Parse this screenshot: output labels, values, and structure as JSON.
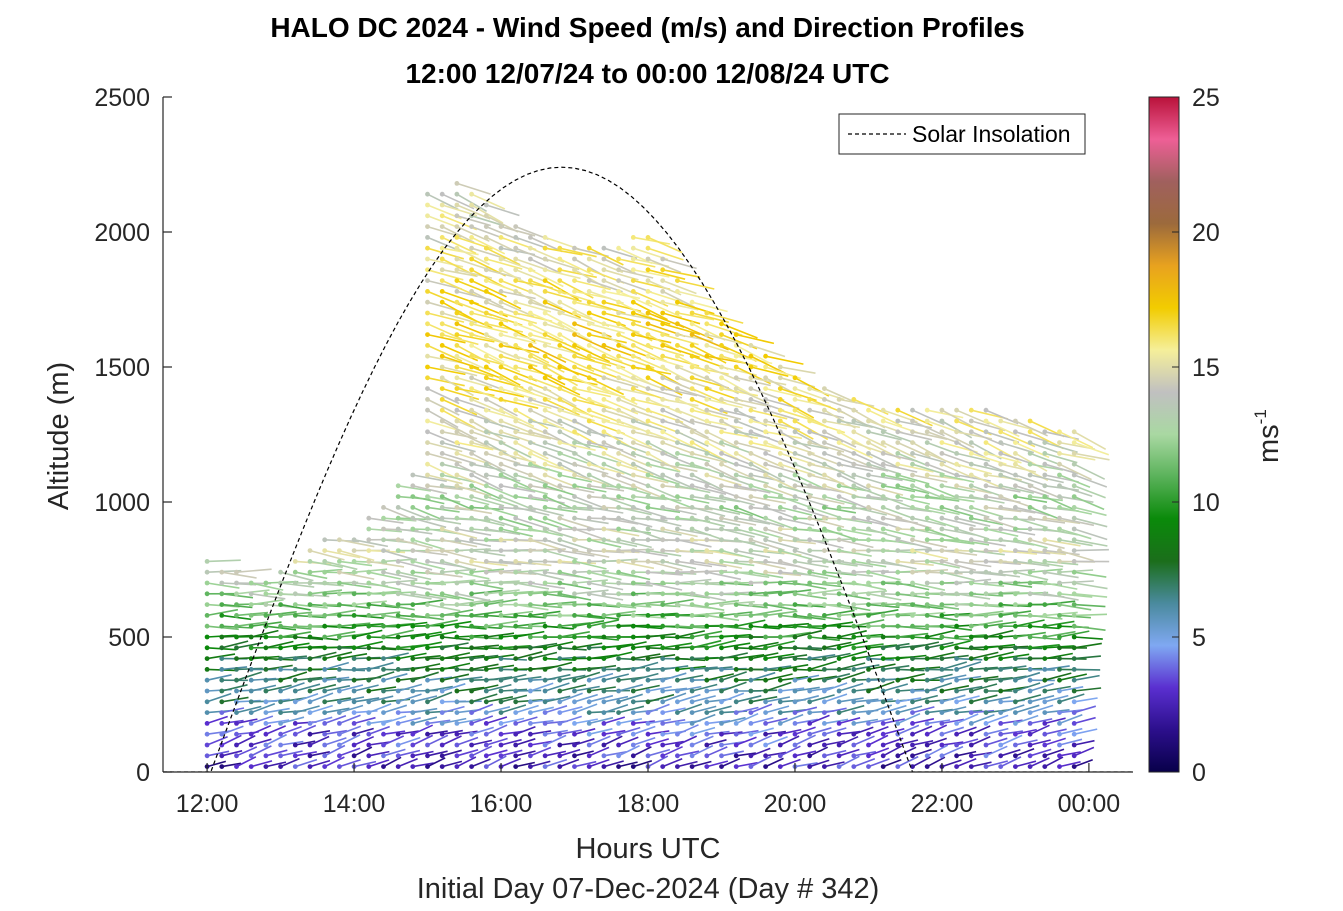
{
  "chart_data": {
    "type": "wind_barb_profile",
    "title": "HALO DC 2024 - Wind Speed (m/s) and Direction Profiles",
    "subtitle": "12:00 12/07/24 to 00:00 12/08/24  UTC",
    "xlabel": "Hours UTC",
    "xlabel2": "Initial Day 07-Dec-2024 (Day # 342)",
    "ylabel": "Altitude (m)",
    "xlim_hours": [
      11.4,
      24.6
    ],
    "ylim": [
      0,
      2500
    ],
    "xticks": [
      {
        "hour": 12,
        "label": "12:00"
      },
      {
        "hour": 14,
        "label": "14:00"
      },
      {
        "hour": 16,
        "label": "16:00"
      },
      {
        "hour": 18,
        "label": "18:00"
      },
      {
        "hour": 20,
        "label": "20:00"
      },
      {
        "hour": 22,
        "label": "22:00"
      },
      {
        "hour": 24,
        "label": "00:00"
      }
    ],
    "yticks": [
      {
        "value": 0,
        "label": "0"
      },
      {
        "value": 500,
        "label": "500"
      },
      {
        "value": 1000,
        "label": "1000"
      },
      {
        "value": 1500,
        "label": "1500"
      },
      {
        "value": 2000,
        "label": "2000"
      },
      {
        "value": 2500,
        "label": "2500"
      }
    ],
    "legend": {
      "entries": [
        "Solar Insolation"
      ],
      "location": "top-right"
    },
    "colorbar": {
      "label": "ms",
      "label_exponent": "-1",
      "range": [
        0,
        25
      ],
      "ticks": [
        {
          "value": 0,
          "label": "0"
        },
        {
          "value": 5,
          "label": "5"
        },
        {
          "value": 10,
          "label": "10"
        },
        {
          "value": 15,
          "label": "15"
        },
        {
          "value": 20,
          "label": "20"
        },
        {
          "value": 25,
          "label": "25"
        }
      ],
      "colors": [
        "#08004a",
        "#2c0f8c",
        "#5a2fd0",
        "#7fa8f2",
        "#4a8a9e",
        "#1b6e1b",
        "#0a8a0a",
        "#5ab25a",
        "#a9d8a2",
        "#c0c0c0",
        "#f5ef9a",
        "#f2cc00",
        "#e8a21f",
        "#9c6a3c",
        "#a0605e",
        "#ee5f96",
        "#b9123a"
      ]
    },
    "solar_insolation": {
      "sunrise_hour": 12.05,
      "sunset_hour": 21.6,
      "peak_altitude_units": 2240,
      "style": "dashed"
    },
    "wind_profile": {
      "start_hour": 12.0,
      "end_hour": 23.8,
      "time_step_hours": 0.2,
      "level_step_m": 40,
      "top_altitude_by_hour": [
        {
          "hour": 12.0,
          "top": 780
        },
        {
          "hour": 12.6,
          "top": 720
        },
        {
          "hour": 13.0,
          "top": 760
        },
        {
          "hour": 13.4,
          "top": 860
        },
        {
          "hour": 14.0,
          "top": 900
        },
        {
          "hour": 14.8,
          "top": 1120
        },
        {
          "hour": 15.0,
          "top": 2160
        },
        {
          "hour": 15.4,
          "top": 2200
        },
        {
          "hour": 16.0,
          "top": 2050
        },
        {
          "hour": 17.0,
          "top": 1950
        },
        {
          "hour": 18.0,
          "top": 2000
        },
        {
          "hour": 18.6,
          "top": 1760
        },
        {
          "hour": 19.2,
          "top": 1620
        },
        {
          "hour": 20.0,
          "top": 1460
        },
        {
          "hour": 21.0,
          "top": 1370
        },
        {
          "hour": 22.0,
          "top": 1360
        },
        {
          "hour": 23.0,
          "top": 1330
        },
        {
          "hour": 23.8,
          "top": 1260
        }
      ],
      "speed_profile_ms": [
        {
          "altitude": 0,
          "speed": 2.5
        },
        {
          "altitude": 150,
          "speed": 3.5
        },
        {
          "altitude": 250,
          "speed": 6.0
        },
        {
          "altitude": 400,
          "speed": 7.5
        },
        {
          "altitude": 600,
          "speed": 11.5
        },
        {
          "altitude": 800,
          "speed": 14.0
        },
        {
          "altitude": 1000,
          "speed": 13.0
        },
        {
          "altitude": 1300,
          "speed": 15.0
        },
        {
          "altitude": 1600,
          "speed": 16.5
        },
        {
          "altitude": 2000,
          "speed": 15.0
        },
        {
          "altitude": 2250,
          "speed": 14.0
        }
      ],
      "direction_deg": {
        "lower": 250,
        "upper": 290
      }
    }
  }
}
